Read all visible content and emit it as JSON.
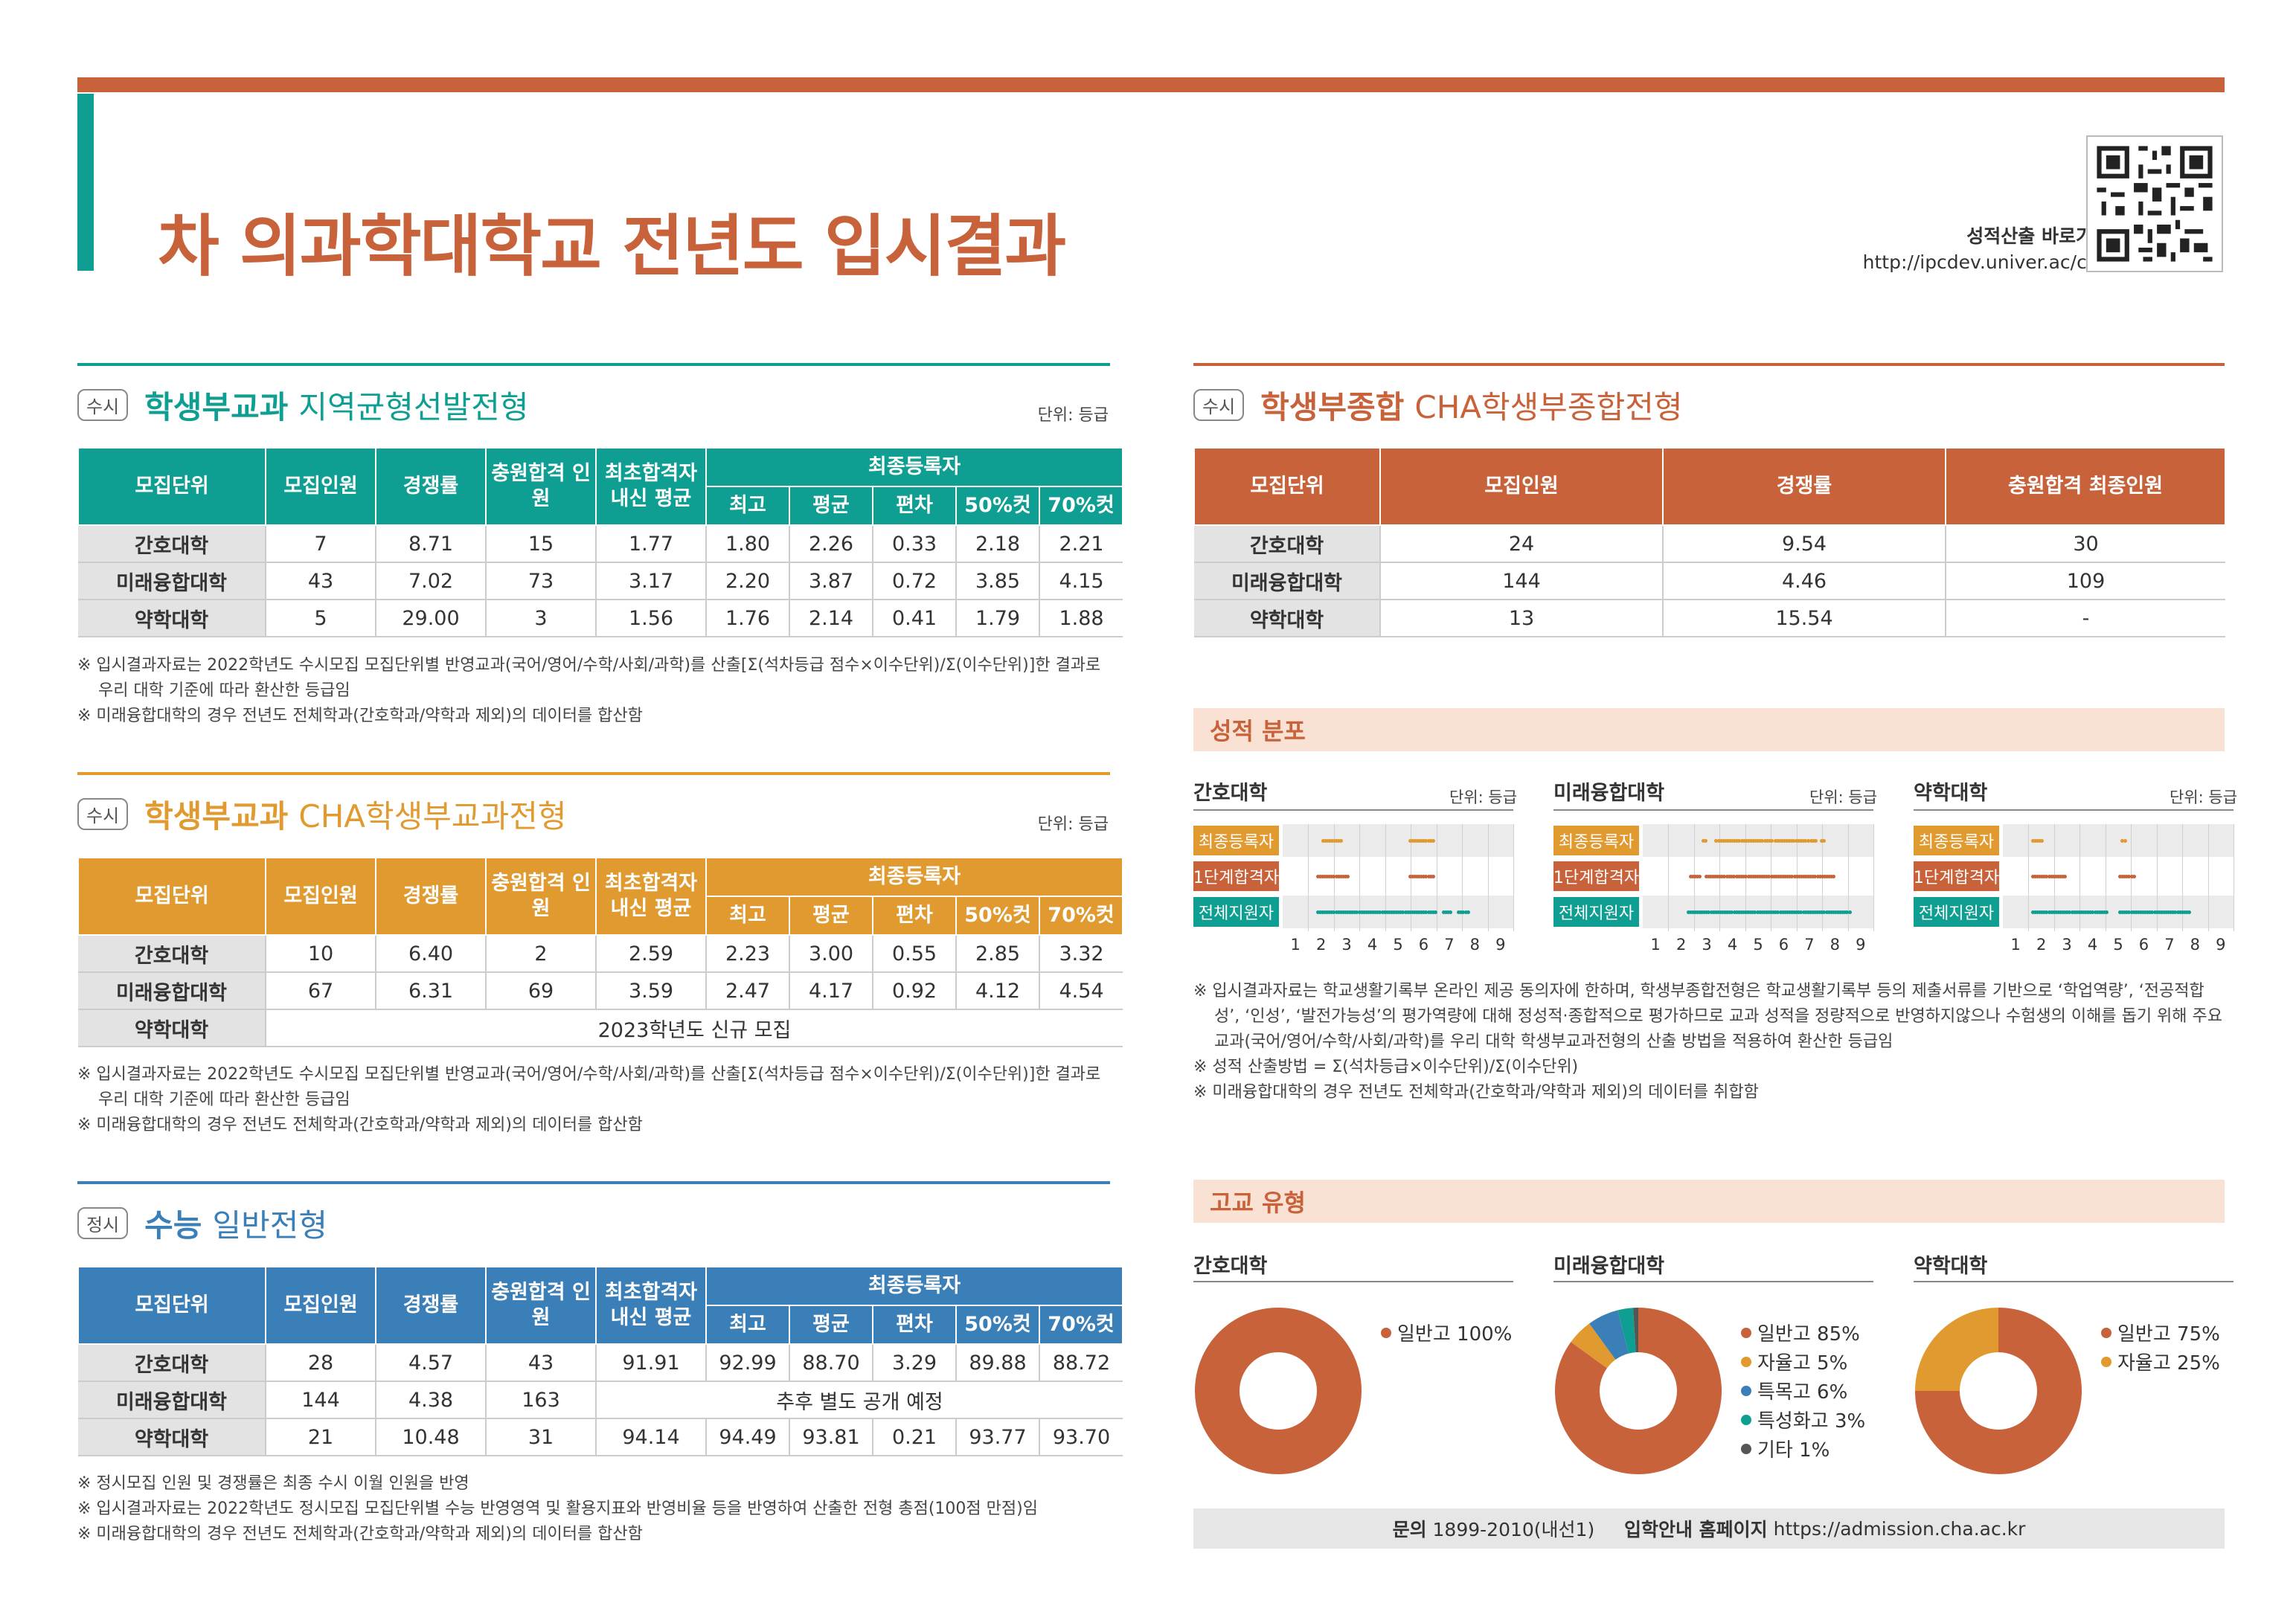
{
  "header": {
    "title": "차 의과학대학교 전년도 입시결과",
    "qr_label": "성적산출 바로가기",
    "qr_url": "http://ipcdev.univer.ac/cha"
  },
  "colors": {
    "orange": "#c8623a",
    "teal": "#0f9f92",
    "amber": "#e09a30",
    "blue": "#3a7fb7",
    "grey": "#555555"
  },
  "unit_label": "단위: 등급",
  "sections": {
    "s1": {
      "tag": "수시",
      "title_strong": "학생부교과",
      "title_light": "지역균형선발전형",
      "headers": {
        "unit": "모집단위",
        "quota": "모집인원",
        "rate": "경쟁률",
        "total": "충원합격 인원",
        "first": "최초합격자 내신 평균",
        "final": "최종등록자",
        "subs": [
          "최고",
          "평균",
          "편차",
          "50%컷",
          "70%컷"
        ]
      },
      "rows": [
        [
          "간호대학",
          "7",
          "8.71",
          "15",
          "1.77",
          "1.80",
          "2.26",
          "0.33",
          "2.18",
          "2.21"
        ],
        [
          "미래융합대학",
          "43",
          "7.02",
          "73",
          "3.17",
          "2.20",
          "3.87",
          "0.72",
          "3.85",
          "4.15"
        ],
        [
          "약학대학",
          "5",
          "29.00",
          "3",
          "1.56",
          "1.76",
          "2.14",
          "0.41",
          "1.79",
          "1.88"
        ]
      ],
      "notes": [
        "※ 입시결과자료는 2022학년도 수시모집 모집단위별 반영교과(국어/영어/수학/사회/과학)를 산출[Σ(석차등급 점수×이수단위)/Σ(이수단위)]한 결과로 우리 대학 기준에 따라 환산한 등급임",
        "※ 미래융합대학의 경우 전년도 전체학과(간호학과/약학과 제외)의 데이터를 합산함"
      ]
    },
    "s2": {
      "tag": "수시",
      "title_strong": "학생부교과",
      "title_light": "CHA학생부교과전형",
      "rows": [
        [
          "간호대학",
          "10",
          "6.40",
          "2",
          "2.59",
          "2.23",
          "3.00",
          "0.55",
          "2.85",
          "3.32"
        ],
        [
          "미래융합대학",
          "67",
          "6.31",
          "69",
          "3.59",
          "2.47",
          "4.17",
          "0.92",
          "4.12",
          "4.54"
        ]
      ],
      "new_row": {
        "unit": "약학대학",
        "text": "2023학년도 신규 모집"
      },
      "notes": [
        "※ 입시결과자료는 2022학년도 수시모집 모집단위별 반영교과(국어/영어/수학/사회/과학)를 산출[Σ(석차등급 점수×이수단위)/Σ(이수단위)]한 결과로 우리 대학 기준에 따라 환산한 등급임",
        "※ 미래융합대학의 경우 전년도 전체학과(간호학과/약학과 제외)의 데이터를 합산함"
      ]
    },
    "s3": {
      "tag": "정시",
      "title_strong": "수능",
      "title_light": "일반전형",
      "rows": [
        [
          "간호대학",
          "28",
          "4.57",
          "43",
          "91.91",
          "92.99",
          "88.70",
          "3.29",
          "89.88",
          "88.72"
        ]
      ],
      "row_mid": {
        "unit": "미래융합대학",
        "quota": "144",
        "rate": "4.38",
        "total": "163",
        "text": "추후 별도 공개 예정"
      },
      "rows_after": [
        [
          "약학대학",
          "21",
          "10.48",
          "31",
          "94.14",
          "94.49",
          "93.81",
          "0.21",
          "93.77",
          "93.70"
        ]
      ],
      "notes": [
        "※ 정시모집 인원 및 경쟁률은 최종 수시 이월 인원을 반영",
        "※ 입시결과자료는 2022학년도 정시모집 모집단위별 수능 반영영역 및 활용지표와 반영비율 등을 반영하여 산출한 전형 총점(100점 만점)임",
        "※ 미래융합대학의 경우 전년도 전체학과(간호학과/약학과 제외)의 데이터를 합산함"
      ]
    },
    "s4": {
      "tag": "수시",
      "title_strong": "학생부종합",
      "title_light": "CHA학생부종합전형",
      "headers": [
        "모집단위",
        "모집인원",
        "경쟁률",
        "충원합격 최종인원"
      ],
      "rows": [
        [
          "간호대학",
          "24",
          "9.54",
          "30"
        ],
        [
          "미래융합대학",
          "144",
          "4.46",
          "109"
        ],
        [
          "약학대학",
          "13",
          "15.54",
          "-"
        ]
      ]
    }
  },
  "distribution": {
    "band": "성적 분포",
    "row_labels": [
      "최종등록자",
      "1단계합격자",
      "전체지원자"
    ],
    "ticks": [
      "1",
      "2",
      "3",
      "4",
      "5",
      "6",
      "7",
      "8",
      "9"
    ],
    "panels": [
      {
        "title": "간호대학",
        "clusters": [
          [
            [
              2.0,
              2.8
            ],
            [
              5.4,
              6.3
            ]
          ],
          [
            [
              1.8,
              3.0
            ],
            [
              5.4,
              6.3
            ]
          ],
          [
            [
              1.8,
              6.4
            ],
            [
              6.7,
              7.0
            ],
            [
              7.3,
              7.7
            ]
          ]
        ]
      },
      {
        "title": "미래융합대학",
        "clusters": [
          [
            [
              2.8,
              2.9
            ],
            [
              3.3,
              5.5
            ],
            [
              5.6,
              6.8
            ],
            [
              6.9,
              7.2
            ],
            [
              7.4,
              7.5
            ]
          ],
          [
            [
              2.3,
              2.7
            ],
            [
              2.9,
              4.0
            ],
            [
              4.1,
              7.9
            ]
          ],
          [
            [
              2.2,
              8.5
            ]
          ]
        ]
      },
      {
        "title": "약학대학",
        "clusters": [
          [
            [
              1.6,
              2.0
            ],
            [
              5.1,
              5.2
            ]
          ],
          [
            [
              1.6,
              2.9
            ],
            [
              5.0,
              5.6
            ]
          ],
          [
            [
              1.6,
              4.5
            ],
            [
              5.0,
              7.7
            ]
          ]
        ]
      }
    ],
    "notes": [
      "※ 입시결과자료는 학교생활기록부 온라인 제공 동의자에 한하며, 학생부종합전형은 학교생활기록부 등의 제출서류를 기반으로 ‘학업역량’, ‘전공적합성’, ‘인성’, ‘발전가능성’의 평가역량에 대해 정성적·종합적으로 평가하므로 교과 성적을 정량적으로 반영하지않으나 수험생의 이해를 돕기 위해 주요교과(국어/영어/수학/사회/과학)를 우리 대학 학생부교과전형의 산출 방법을 적용하여 환산한 등급임",
      "※ 성적 산출방법 = Σ(석차등급×이수단위)/Σ(이수단위)",
      "※ 미래융합대학의 경우 전년도 전체학과(간호학과/약학과 제외)의 데이터를 취합함"
    ]
  },
  "school_type": {
    "band": "고교 유형",
    "panels": [
      {
        "title": "간호대학",
        "slices": [
          {
            "label": "일반고 100%",
            "value": 100,
            "color": "#c8623a"
          }
        ]
      },
      {
        "title": "미래융합대학",
        "slices": [
          {
            "label": "일반고 85%",
            "value": 85,
            "color": "#c8623a"
          },
          {
            "label": "자율고 5%",
            "value": 5,
            "color": "#e09a30"
          },
          {
            "label": "특목고 6%",
            "value": 6,
            "color": "#3a7fb7"
          },
          {
            "label": "특성화고 3%",
            "value": 3,
            "color": "#0f9f92"
          },
          {
            "label": "기타 1%",
            "value": 1,
            "color": "#555555"
          }
        ]
      },
      {
        "title": "약학대학",
        "slices": [
          {
            "label": "일반고 75%",
            "value": 75,
            "color": "#c8623a"
          },
          {
            "label": "자율고 25%",
            "value": 25,
            "color": "#e09a30"
          }
        ]
      }
    ]
  },
  "footer": {
    "inquiry_label": "문의",
    "inquiry_value": "1899-2010(내선1)",
    "home_label": "입학안내 홈페이지",
    "home_value": "https://admission.cha.ac.kr"
  }
}
